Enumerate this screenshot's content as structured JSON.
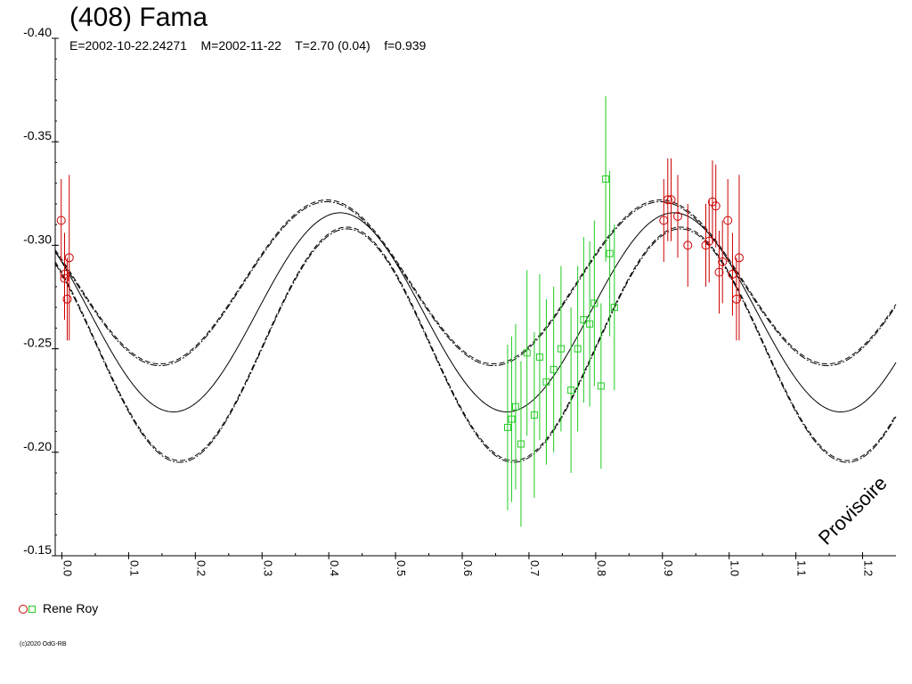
{
  "title": "(408) Fama",
  "subtitle": "E=2002-10-22.24271    M=2002-11-22    T=2.70 (0.04)    f=0.939",
  "watermark": "Provisoire",
  "copyright": "(c)2020 OdG-RB",
  "colors": {
    "series_red": "#cc0000",
    "series_green": "#22cc22",
    "curve": "#000000"
  },
  "chart_data": {
    "type": "scatter",
    "xlim": [
      -0.01,
      1.25
    ],
    "ylim": [
      -0.4,
      -0.15
    ],
    "y_inverted": true,
    "x_ticks": [
      "0.0",
      "0.1",
      "0.2",
      "0.3",
      "0.4",
      "0.5",
      "0.6",
      "0.7",
      "0.8",
      "0.9",
      "1.0",
      "1.1",
      "1.2"
    ],
    "y_ticks": [
      "-0.40",
      "-0.35",
      "-0.30",
      "-0.25",
      "-0.20",
      "-0.15"
    ],
    "legend": {
      "label": "Rene Roy",
      "position": "bottom-left"
    },
    "fit": {
      "period_cycles": 2,
      "upper_envelope": {
        "mean": -0.2823,
        "amplitude": 0.0396,
        "phase_of_max_brightness": 0.397
      },
      "center": {
        "mean": -0.2676,
        "amplitude": 0.0481,
        "phase_of_max_brightness": 0.417
      },
      "lower_envelope": {
        "mean": -0.2524,
        "amplitude": 0.0564,
        "phase_of_max_brightness": 0.427
      }
    },
    "series": [
      {
        "name": "Rene Roy",
        "marker": "circle",
        "color": "red",
        "points": [
          {
            "x": -0.001,
            "y": -0.312,
            "err": 0.02
          },
          {
            "x": 0.004,
            "y": -0.286,
            "err": 0.02
          },
          {
            "x": 0.008,
            "y": -0.274,
            "err": 0.02
          },
          {
            "x": 0.011,
            "y": -0.294,
            "err": 0.04
          },
          {
            "x": 0.004,
            "y": -0.284,
            "err": 0.02
          },
          {
            "x": 0.902,
            "y": -0.312,
            "err": 0.02
          },
          {
            "x": 0.908,
            "y": -0.322,
            "err": 0.02
          },
          {
            "x": 0.913,
            "y": -0.322,
            "err": 0.02
          },
          {
            "x": 0.923,
            "y": -0.314,
            "err": 0.02
          },
          {
            "x": 0.938,
            "y": -0.3,
            "err": 0.02
          },
          {
            "x": 0.965,
            "y": -0.3,
            "err": 0.02
          },
          {
            "x": 0.97,
            "y": -0.302,
            "err": 0.02
          },
          {
            "x": 0.975,
            "y": -0.321,
            "err": 0.02
          },
          {
            "x": 0.98,
            "y": -0.319,
            "err": 0.02
          },
          {
            "x": 0.985,
            "y": -0.287,
            "err": 0.02
          },
          {
            "x": 0.99,
            "y": -0.292,
            "err": 0.02
          },
          {
            "x": 0.998,
            "y": -0.312,
            "err": 0.02
          },
          {
            "x": 1.005,
            "y": -0.286,
            "err": 0.02
          },
          {
            "x": 1.011,
            "y": -0.274,
            "err": 0.02
          },
          {
            "x": 1.015,
            "y": -0.294,
            "err": 0.04
          }
        ]
      },
      {
        "name": "Rene Roy",
        "marker": "square",
        "color": "green",
        "points": [
          {
            "x": 0.668,
            "y": -0.212,
            "err": 0.04
          },
          {
            "x": 0.674,
            "y": -0.216,
            "err": 0.04
          },
          {
            "x": 0.68,
            "y": -0.222,
            "err": 0.04
          },
          {
            "x": 0.688,
            "y": -0.204,
            "err": 0.04
          },
          {
            "x": 0.697,
            "y": -0.248,
            "err": 0.04
          },
          {
            "x": 0.708,
            "y": -0.218,
            "err": 0.04
          },
          {
            "x": 0.716,
            "y": -0.246,
            "err": 0.04
          },
          {
            "x": 0.726,
            "y": -0.234,
            "err": 0.04
          },
          {
            "x": 0.737,
            "y": -0.24,
            "err": 0.04
          },
          {
            "x": 0.748,
            "y": -0.25,
            "err": 0.04
          },
          {
            "x": 0.763,
            "y": -0.23,
            "err": 0.04
          },
          {
            "x": 0.773,
            "y": -0.25,
            "err": 0.04
          },
          {
            "x": 0.782,
            "y": -0.264,
            "err": 0.04
          },
          {
            "x": 0.791,
            "y": -0.262,
            "err": 0.04
          },
          {
            "x": 0.798,
            "y": -0.272,
            "err": 0.04
          },
          {
            "x": 0.808,
            "y": -0.232,
            "err": 0.04
          },
          {
            "x": 0.815,
            "y": -0.332,
            "err": 0.04
          },
          {
            "x": 0.821,
            "y": -0.296,
            "err": 0.04
          },
          {
            "x": 0.828,
            "y": -0.27,
            "err": 0.04
          }
        ]
      }
    ]
  }
}
